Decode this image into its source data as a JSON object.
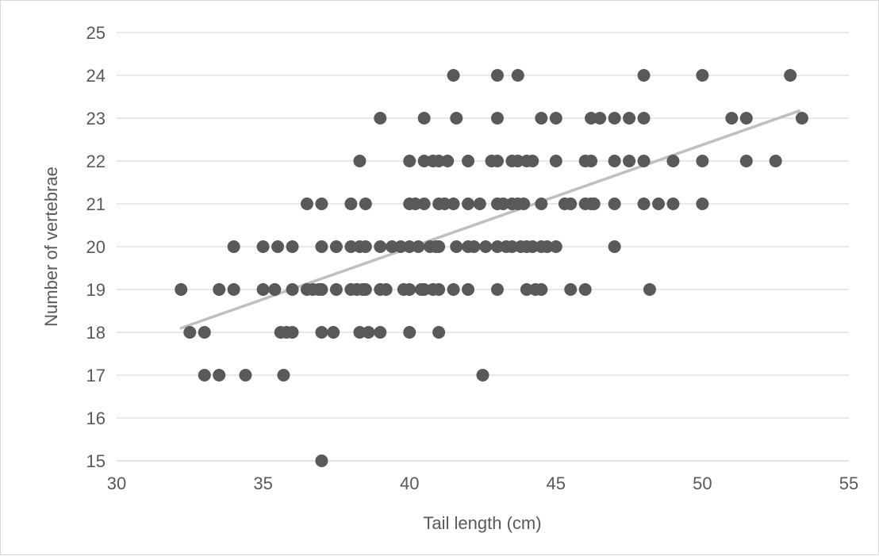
{
  "chart_data": {
    "type": "scatter",
    "title": "",
    "xlabel": "Tail length (cm)",
    "ylabel": "Number of vertebrae",
    "xlim": [
      30,
      55
    ],
    "ylim": [
      15,
      25
    ],
    "xticks": [
      30,
      35,
      40,
      45,
      50,
      55
    ],
    "yticks": [
      15,
      16,
      17,
      18,
      19,
      20,
      21,
      22,
      23,
      24,
      25
    ],
    "grid": "horizontal",
    "legend": "none",
    "colors": {
      "points": "#595959",
      "trendline": "#bfbfbf",
      "grid": "#d9d9d9",
      "text": "#595959"
    },
    "series": [
      {
        "points": [
          [
            32.2,
            19
          ],
          [
            32.5,
            18
          ],
          [
            33,
            18
          ],
          [
            33,
            17
          ],
          [
            33.5,
            17
          ],
          [
            33.5,
            19
          ],
          [
            34,
            19
          ],
          [
            34,
            20
          ],
          [
            34.4,
            17
          ],
          [
            35,
            19
          ],
          [
            35,
            20
          ],
          [
            35.4,
            19
          ],
          [
            35.5,
            20
          ],
          [
            35.6,
            18
          ],
          [
            35.7,
            17
          ],
          [
            35.8,
            18
          ],
          [
            36,
            18
          ],
          [
            36,
            19
          ],
          [
            36,
            20
          ],
          [
            36.5,
            19
          ],
          [
            36.5,
            21
          ],
          [
            36.7,
            19
          ],
          [
            36.9,
            19
          ],
          [
            37,
            19
          ],
          [
            37,
            20
          ],
          [
            37,
            21
          ],
          [
            37,
            18
          ],
          [
            37,
            15
          ],
          [
            37.4,
            18
          ],
          [
            37.5,
            19
          ],
          [
            37.5,
            20
          ],
          [
            38,
            19
          ],
          [
            38,
            20
          ],
          [
            38,
            21
          ],
          [
            38.2,
            19
          ],
          [
            38.3,
            20
          ],
          [
            38.3,
            22
          ],
          [
            38.3,
            18
          ],
          [
            38.4,
            19
          ],
          [
            38.5,
            19
          ],
          [
            38.5,
            20
          ],
          [
            38.5,
            21
          ],
          [
            38.6,
            18
          ],
          [
            39,
            20
          ],
          [
            39,
            19
          ],
          [
            39,
            18
          ],
          [
            39,
            23
          ],
          [
            39.2,
            19
          ],
          [
            39.4,
            20
          ],
          [
            39.7,
            20
          ],
          [
            39.8,
            19
          ],
          [
            40,
            19
          ],
          [
            40,
            20
          ],
          [
            40,
            21
          ],
          [
            40,
            22
          ],
          [
            40,
            18
          ],
          [
            40.2,
            21
          ],
          [
            40.3,
            20
          ],
          [
            40.4,
            19
          ],
          [
            40.5,
            19
          ],
          [
            40.5,
            21
          ],
          [
            40.5,
            22
          ],
          [
            40.5,
            23
          ],
          [
            40.7,
            20
          ],
          [
            40.8,
            19
          ],
          [
            40.8,
            22
          ],
          [
            40.9,
            20
          ],
          [
            41,
            20
          ],
          [
            41,
            21
          ],
          [
            41,
            22
          ],
          [
            41,
            19
          ],
          [
            41,
            18
          ],
          [
            41.2,
            21
          ],
          [
            41.3,
            22
          ],
          [
            41.5,
            19
          ],
          [
            41.5,
            21
          ],
          [
            41.5,
            24
          ],
          [
            41.6,
            23
          ],
          [
            41.6,
            20
          ],
          [
            42,
            20
          ],
          [
            42,
            21
          ],
          [
            42,
            22
          ],
          [
            42,
            19
          ],
          [
            42.2,
            20
          ],
          [
            42.4,
            21
          ],
          [
            42.5,
            17
          ],
          [
            42.6,
            20
          ],
          [
            42.8,
            22
          ],
          [
            43,
            19
          ],
          [
            43,
            20
          ],
          [
            43,
            21
          ],
          [
            43,
            22
          ],
          [
            43,
            23
          ],
          [
            43,
            24
          ],
          [
            43.2,
            21
          ],
          [
            43.3,
            20
          ],
          [
            43.5,
            20
          ],
          [
            43.5,
            21
          ],
          [
            43.5,
            22
          ],
          [
            43.7,
            21
          ],
          [
            43.7,
            22
          ],
          [
            43.7,
            24
          ],
          [
            43.8,
            20
          ],
          [
            43.9,
            21
          ],
          [
            44,
            20
          ],
          [
            44,
            22
          ],
          [
            44,
            19
          ],
          [
            44.2,
            22
          ],
          [
            44.2,
            20
          ],
          [
            44.3,
            19
          ],
          [
            44.5,
            20
          ],
          [
            44.5,
            21
          ],
          [
            44.5,
            23
          ],
          [
            44.5,
            19
          ],
          [
            44.7,
            20
          ],
          [
            45,
            20
          ],
          [
            45,
            22
          ],
          [
            45,
            23
          ],
          [
            45.3,
            21
          ],
          [
            45.5,
            21
          ],
          [
            45.5,
            19
          ],
          [
            46,
            19
          ],
          [
            46,
            21
          ],
          [
            46,
            22
          ],
          [
            46.2,
            21
          ],
          [
            46.2,
            22
          ],
          [
            46.2,
            23
          ],
          [
            46.3,
            21
          ],
          [
            46.5,
            23
          ],
          [
            47,
            23
          ],
          [
            47,
            21
          ],
          [
            47,
            22
          ],
          [
            47,
            20
          ],
          [
            47.5,
            22
          ],
          [
            47.5,
            23
          ],
          [
            48,
            21
          ],
          [
            48,
            22
          ],
          [
            48,
            23
          ],
          [
            48,
            24
          ],
          [
            48.2,
            19
          ],
          [
            48.5,
            21
          ],
          [
            49,
            21
          ],
          [
            49,
            22
          ],
          [
            50,
            21
          ],
          [
            50,
            22
          ],
          [
            50,
            24
          ],
          [
            51,
            23
          ],
          [
            51.5,
            22
          ],
          [
            51.5,
            23
          ],
          [
            52.5,
            22
          ],
          [
            53,
            24
          ],
          [
            53.4,
            23
          ]
        ]
      }
    ],
    "trendline": {
      "x": [
        32.2,
        53.3
      ],
      "y": [
        18.1,
        23.17
      ]
    }
  }
}
